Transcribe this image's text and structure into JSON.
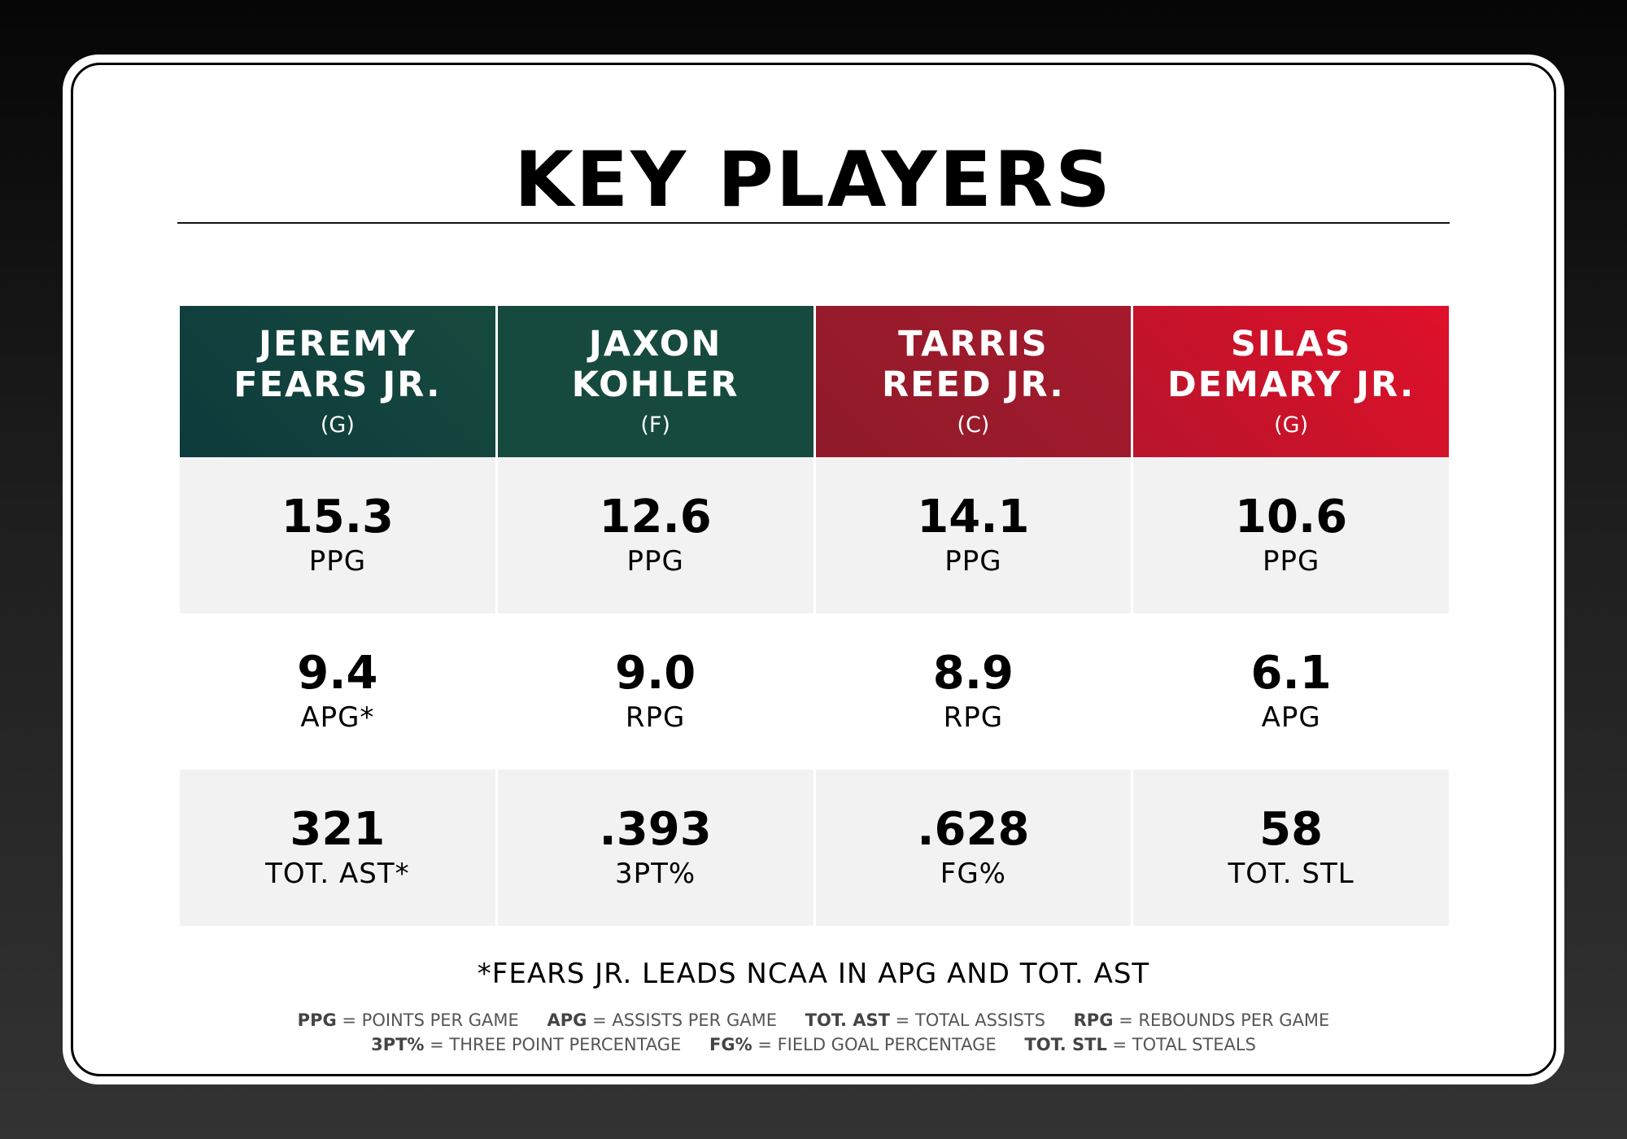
{
  "title": "KEY PLAYERS",
  "colors": {
    "green_dark": "#0d3a3c",
    "green_mid": "#174a3e",
    "red_dark": "#8f1b2a",
    "red_bright": "#e0102a",
    "cell_shade": "#f2f2f2"
  },
  "players": [
    {
      "name_line1": "JEREMY",
      "name_line2": "FEARS JR.",
      "position": "(G)",
      "header_color": "green",
      "stats": [
        {
          "value": "15.3",
          "label": "PPG"
        },
        {
          "value": "9.4",
          "label": "APG*"
        },
        {
          "value": "321",
          "label": "TOT. AST*"
        }
      ]
    },
    {
      "name_line1": "JAXON",
      "name_line2": "KOHLER",
      "position": "(F)",
      "header_color": "green",
      "stats": [
        {
          "value": "12.6",
          "label": "PPG"
        },
        {
          "value": "9.0",
          "label": "RPG"
        },
        {
          "value": ".393",
          "label": "3PT%"
        }
      ]
    },
    {
      "name_line1": "TARRIS",
      "name_line2": "REED JR.",
      "position": "(C)",
      "header_color": "red",
      "stats": [
        {
          "value": "14.1",
          "label": "PPG"
        },
        {
          "value": "8.9",
          "label": "RPG"
        },
        {
          "value": ".628",
          "label": "FG%"
        }
      ]
    },
    {
      "name_line1": "SILAS",
      "name_line2": "DEMARY JR.",
      "position": "(G)",
      "header_color": "red",
      "stats": [
        {
          "value": "10.6",
          "label": "PPG"
        },
        {
          "value": "6.1",
          "label": "APG"
        },
        {
          "value": "58",
          "label": "TOT. STL"
        }
      ]
    }
  ],
  "footnote": "*FEARS JR. LEADS NCAA IN APG AND TOT. AST",
  "legend": [
    [
      {
        "abbr": "PPG",
        "desc": "= POINTS PER GAME"
      },
      {
        "abbr": "APG",
        "desc": "= ASSISTS PER GAME"
      },
      {
        "abbr": "TOT. AST",
        "desc": "= TOTAL ASSISTS"
      },
      {
        "abbr": "RPG",
        "desc": "= REBOUNDS PER GAME"
      }
    ],
    [
      {
        "abbr": "3PT%",
        "desc": "= THREE POINT PERCENTAGE"
      },
      {
        "abbr": "FG%",
        "desc": "= FIELD GOAL PERCENTAGE"
      },
      {
        "abbr": "TOT. STL",
        "desc": "= TOTAL STEALS"
      }
    ]
  ]
}
